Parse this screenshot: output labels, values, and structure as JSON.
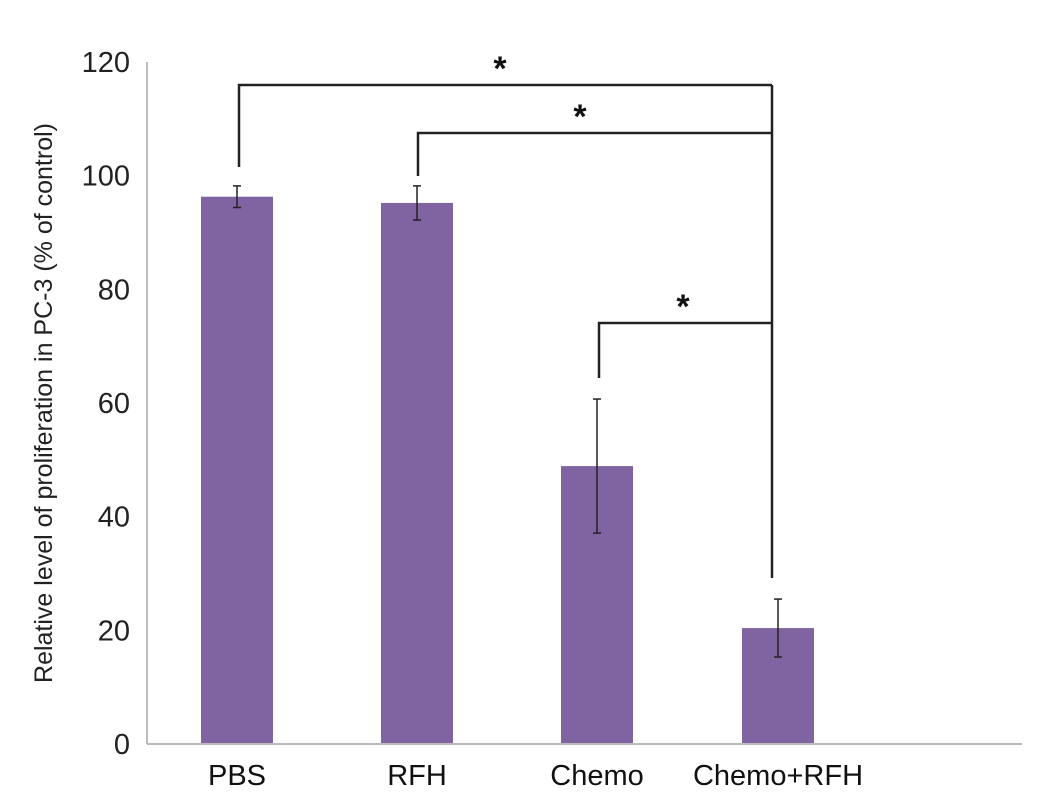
{
  "chart_data": {
    "type": "bar",
    "title": "",
    "xlabel": "",
    "ylabel": "Relative level of proliferation in PC-3 (% of control)",
    "ylim": [
      0,
      120
    ],
    "yticks": [
      0,
      20,
      40,
      60,
      80,
      100,
      120
    ],
    "grid": false,
    "categories": [
      "PBS",
      "RFH",
      "Chemo",
      "Chemo+RFH"
    ],
    "values": [
      96.3,
      95.2,
      48.9,
      20.4
    ],
    "errors": [
      1.9,
      3.0,
      11.8,
      5.1
    ],
    "bar_color": "#8064a2",
    "significance": [
      {
        "from": "PBS",
        "to": "Chemo+RFH",
        "label": "*"
      },
      {
        "from": "RFH",
        "to": "Chemo+RFH",
        "label": "*"
      },
      {
        "from": "Chemo",
        "to": "Chemo+RFH",
        "label": "*"
      }
    ]
  }
}
